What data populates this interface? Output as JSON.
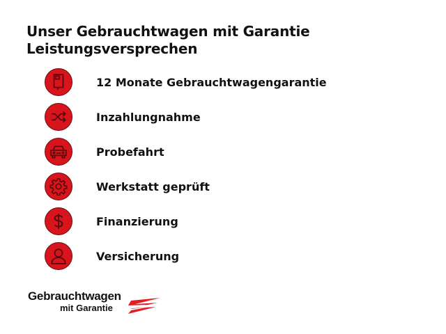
{
  "title": {
    "line1": "Unser Gebrauchtwagen mit Garantie",
    "line2": "Leistungsversprechen"
  },
  "accent_color": "#d8141c",
  "items": [
    {
      "icon": "book-icon",
      "label": "12 Monate Gebrauchtwagengarantie"
    },
    {
      "icon": "shuffle-icon",
      "label": "Inzahlungnahme"
    },
    {
      "icon": "car-icon",
      "label": "Probefahrt"
    },
    {
      "icon": "gear-icon",
      "label": "Werkstatt geprüft"
    },
    {
      "icon": "dollar-icon",
      "label": "Finanzierung"
    },
    {
      "icon": "person-icon",
      "label": "Versicherung"
    }
  ],
  "logo": {
    "line1": "Gebrauchtwagen",
    "line2": "mit Garantie"
  }
}
